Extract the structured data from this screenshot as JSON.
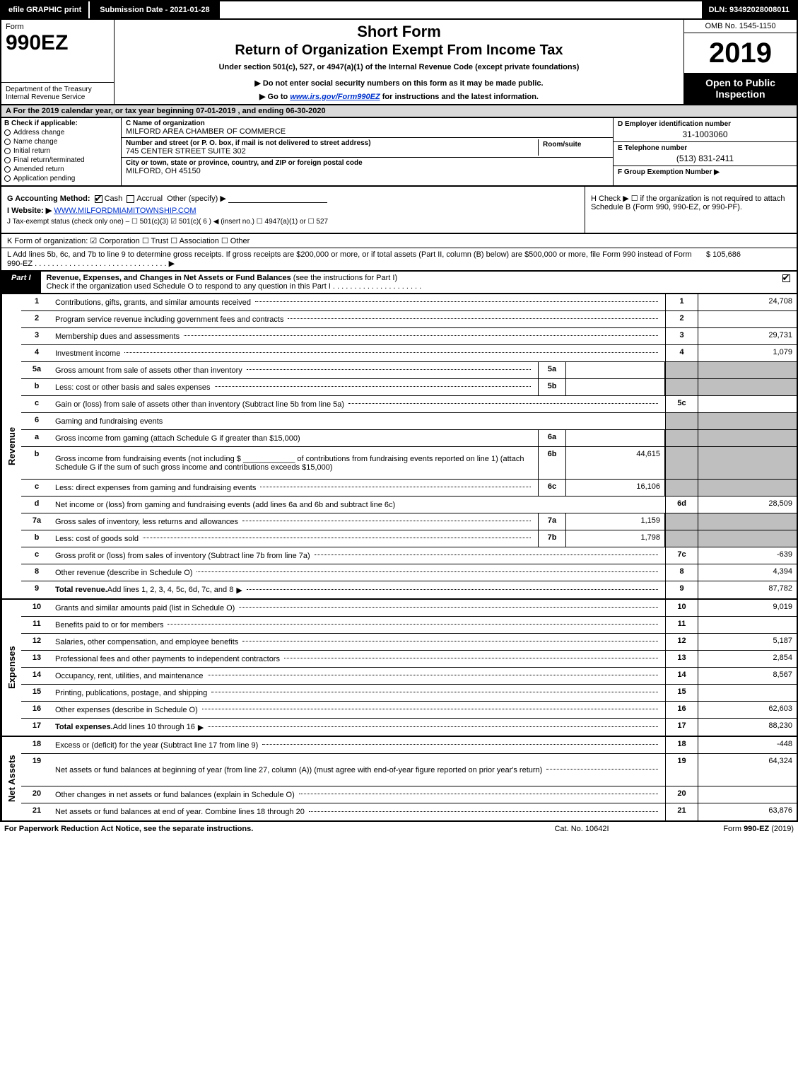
{
  "topbar": {
    "efile": "efile GRAPHIC print",
    "submission": "Submission Date - 2021-01-28",
    "dln": "DLN: 93492028008011"
  },
  "header": {
    "form_word": "Form",
    "form_no": "990EZ",
    "dept": "Department of the Treasury\nInternal Revenue Service",
    "short_form": "Short Form",
    "return_title": "Return of Organization Exempt From Income Tax",
    "under": "Under section 501(c), 527, or 4947(a)(1) of the Internal Revenue Code (except private foundations)",
    "donot": "▶ Do not enter social security numbers on this form as it may be made public.",
    "goto_pre": "▶ Go to ",
    "goto_link": "www.irs.gov/Form990EZ",
    "goto_post": " for instructions and the latest information.",
    "omb": "OMB No. 1545-1150",
    "year": "2019",
    "open": "Open to Public Inspection"
  },
  "sectA": "A  For the 2019 calendar year, or tax year beginning 07-01-2019 , and ending 06-30-2020",
  "boxB": {
    "hdr": "B  Check if applicable:",
    "opts": [
      "Address change",
      "Name change",
      "Initial return",
      "Final return/terminated",
      "Amended return",
      "Application pending"
    ]
  },
  "boxC": {
    "name_lbl": "C Name of organization",
    "name": "MILFORD AREA CHAMBER OF COMMERCE",
    "street_lbl": "Number and street (or P. O. box, if mail is not delivered to street address)",
    "street": "745 CENTER STREET SUITE 302",
    "room_lbl": "Room/suite",
    "city_lbl": "City or town, state or province, country, and ZIP or foreign postal code",
    "city": "MILFORD, OH  45150"
  },
  "boxD": {
    "ein_lbl": "D Employer identification number",
    "ein": "31-1003060",
    "tel_lbl": "E Telephone number",
    "tel": "(513) 831-2411",
    "grp_lbl": "F Group Exemption Number  ▶",
    "grp": ""
  },
  "lineG": {
    "lbl": "G Accounting Method:",
    "cash": "Cash",
    "accrual": "Accrual",
    "other": "Other (specify) ▶"
  },
  "lineH": "H  Check ▶  ☐  if the organization is not required to attach Schedule B (Form 990, 990-EZ, or 990-PF).",
  "lineI_lbl": "I Website: ▶",
  "lineI_val": "WWW.MILFORDMIAMITOWNSHIP.COM",
  "lineJ": "J Tax-exempt status (check only one) –  ☐ 501(c)(3)  ☑ 501(c)( 6 ) ◀ (insert no.)  ☐ 4947(a)(1) or  ☐ 527",
  "lineK": "K Form of organization:   ☑ Corporation   ☐ Trust   ☐ Association   ☐ Other",
  "lineL_txt": "L Add lines 5b, 6c, and 7b to line 9 to determine gross receipts. If gross receipts are $200,000 or more, or if total assets (Part II, column (B) below) are $500,000 or more, file Form 990 instead of Form 990-EZ . . . . . . . . . . . . . . . . . . . . . . . . . . . . . . . ▶",
  "lineL_amt": "$ 105,686",
  "partI": {
    "tab": "Part I",
    "title": "Revenue, Expenses, and Changes in Net Assets or Fund Balances ",
    "title_paren": "(see the instructions for Part I)",
    "sub": "Check if the organization used Schedule O to respond to any question in this Part I . . . . . . . . . . . . . . . . . . . . .",
    "checked": true
  },
  "sides": {
    "revenue": "Revenue",
    "expenses": "Expenses",
    "netassets": "Net Assets"
  },
  "rows_rev": [
    {
      "no": "1",
      "desc": "Contributions, gifts, grants, and similar amounts received",
      "rno": "1",
      "rval": "24,708",
      "dots": true
    },
    {
      "no": "2",
      "desc": "Program service revenue including government fees and contracts",
      "rno": "2",
      "rval": "",
      "dots": true
    },
    {
      "no": "3",
      "desc": "Membership dues and assessments",
      "rno": "3",
      "rval": "29,731",
      "dots": true
    },
    {
      "no": "4",
      "desc": "Investment income",
      "rno": "4",
      "rval": "1,079",
      "dots": true
    },
    {
      "no": "5a",
      "desc": "Gross amount from sale of assets other than inventory",
      "midno": "5a",
      "midval": "",
      "rshade": true,
      "dots": true
    },
    {
      "no": "b",
      "desc": "Less: cost or other basis and sales expenses",
      "midno": "5b",
      "midval": "",
      "rshade": true,
      "dots": true
    },
    {
      "no": "c",
      "desc": "Gain or (loss) from sale of assets other than inventory (Subtract line 5b from line 5a)",
      "rno": "5c",
      "rval": "",
      "dots": true
    },
    {
      "no": "6",
      "desc": "Gaming and fundraising events",
      "rshade": true
    },
    {
      "no": "a",
      "desc": "Gross income from gaming (attach Schedule G if greater than $15,000)",
      "midno": "6a",
      "midval": "",
      "rshade": true
    },
    {
      "no": "b",
      "desc_html": "Gross income from fundraising events (not including $ ____________ of contributions from fundraising events reported on line 1) (attach Schedule G if the sum of such gross income and contributions exceeds $15,000)",
      "midno": "6b",
      "midval": "44,615",
      "rshade": true,
      "tall": true
    },
    {
      "no": "c",
      "desc": "Less: direct expenses from gaming and fundraising events",
      "midno": "6c",
      "midval": "16,106",
      "rshade": true,
      "dots": true
    },
    {
      "no": "d",
      "desc": "Net income or (loss) from gaming and fundraising events (add lines 6a and 6b and subtract line 6c)",
      "rno": "6d",
      "rval": "28,509"
    },
    {
      "no": "7a",
      "desc": "Gross sales of inventory, less returns and allowances",
      "midno": "7a",
      "midval": "1,159",
      "rshade": true,
      "dots": true
    },
    {
      "no": "b",
      "desc": "Less: cost of goods sold",
      "midno": "7b",
      "midval": "1,798",
      "rshade": true,
      "dots": true
    },
    {
      "no": "c",
      "desc": "Gross profit or (loss) from sales of inventory (Subtract line 7b from line 7a)",
      "rno": "7c",
      "rval": "-639",
      "dots": true
    },
    {
      "no": "8",
      "desc": "Other revenue (describe in Schedule O)",
      "rno": "8",
      "rval": "4,394",
      "dots": true
    },
    {
      "no": "9",
      "desc_strong": "Total revenue.",
      "desc": " Add lines 1, 2, 3, 4, 5c, 6d, 7c, and 8",
      "rno": "9",
      "rval": "87,782",
      "arrow": true,
      "dots": true
    }
  ],
  "rows_exp": [
    {
      "no": "10",
      "desc": "Grants and similar amounts paid (list in Schedule O)",
      "rno": "10",
      "rval": "9,019",
      "dots": true
    },
    {
      "no": "11",
      "desc": "Benefits paid to or for members",
      "rno": "11",
      "rval": "",
      "dots": true
    },
    {
      "no": "12",
      "desc": "Salaries, other compensation, and employee benefits",
      "rno": "12",
      "rval": "5,187",
      "dots": true
    },
    {
      "no": "13",
      "desc": "Professional fees and other payments to independent contractors",
      "rno": "13",
      "rval": "2,854",
      "dots": true
    },
    {
      "no": "14",
      "desc": "Occupancy, rent, utilities, and maintenance",
      "rno": "14",
      "rval": "8,567",
      "dots": true
    },
    {
      "no": "15",
      "desc": "Printing, publications, postage, and shipping",
      "rno": "15",
      "rval": "",
      "dots": true
    },
    {
      "no": "16",
      "desc": "Other expenses (describe in Schedule O)",
      "rno": "16",
      "rval": "62,603",
      "dots": true
    },
    {
      "no": "17",
      "desc_strong": "Total expenses.",
      "desc": " Add lines 10 through 16",
      "rno": "17",
      "rval": "88,230",
      "arrow": true,
      "dots": true
    }
  ],
  "rows_net": [
    {
      "no": "18",
      "desc": "Excess or (deficit) for the year (Subtract line 17 from line 9)",
      "rno": "18",
      "rval": "-448",
      "dots": true
    },
    {
      "no": "19",
      "desc": "Net assets or fund balances at beginning of year (from line 27, column (A)) (must agree with end-of-year figure reported on prior year's return)",
      "rno": "19",
      "rval": "64,324",
      "tall": true,
      "dots": true
    },
    {
      "no": "20",
      "desc": "Other changes in net assets or fund balances (explain in Schedule O)",
      "rno": "20",
      "rval": "",
      "dots": true
    },
    {
      "no": "21",
      "desc": "Net assets or fund balances at end of year. Combine lines 18 through 20",
      "rno": "21",
      "rval": "63,876",
      "dots": true
    }
  ],
  "footer": {
    "left": "For Paperwork Reduction Act Notice, see the separate instructions.",
    "mid": "Cat. No. 10642I",
    "right_pre": "Form ",
    "right_bold": "990-EZ",
    "right_post": " (2019)"
  }
}
